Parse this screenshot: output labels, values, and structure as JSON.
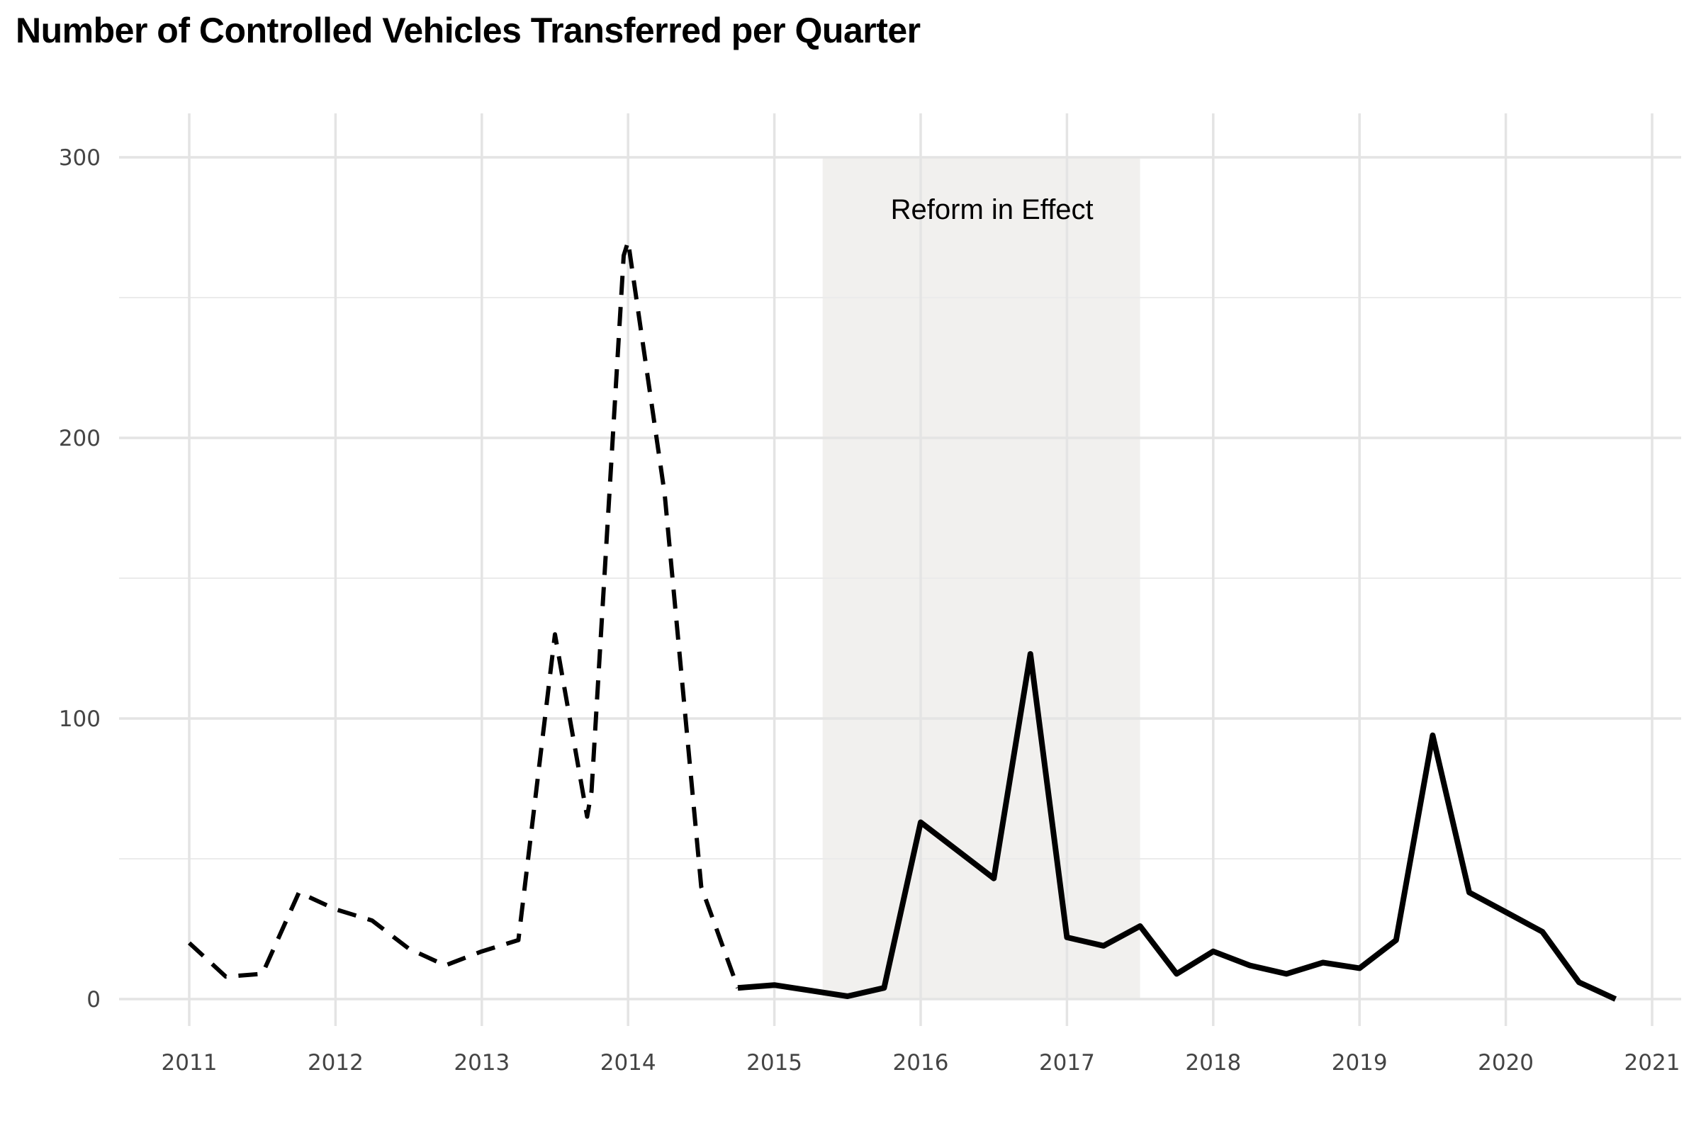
{
  "chart_data": {
    "type": "line",
    "title": "Number of Controlled Vehicles Transferred per Quarter",
    "xlabel": "",
    "ylabel": "",
    "xlim": [
      2010.8,
      2021.1
    ],
    "ylim": [
      -10,
      300
    ],
    "x_ticks": [
      2011,
      2012,
      2013,
      2014,
      2015,
      2016,
      2017,
      2018,
      2019,
      2020,
      2021
    ],
    "x_tick_labels": [
      "2011",
      "2012",
      "2013",
      "2014",
      "2015",
      "2016",
      "2017",
      "2018",
      "2019",
      "2020",
      "2021"
    ],
    "y_ticks": [
      0,
      100,
      200,
      300
    ],
    "y_tick_labels": [
      "0",
      "100",
      "200",
      "300"
    ],
    "y_minor_gridlines": [
      50,
      150,
      250
    ],
    "grid": true,
    "shaded_region": {
      "x": [
        2015.33,
        2017.5
      ],
      "color": "#f1f0ee",
      "label": "Reform in Effect"
    },
    "series": [
      {
        "style": "dashed",
        "color": "#000000",
        "x": [
          2011.0,
          2011.25,
          2011.5,
          2011.75,
          2012.0,
          2012.25,
          2012.5,
          2012.75,
          2013.0,
          2013.25,
          2013.5,
          2013.72,
          2013.75,
          2013.97,
          2014.0,
          2014.25,
          2014.5,
          2014.75
        ],
        "y": [
          20,
          8,
          9,
          38,
          32,
          28,
          18,
          12,
          17,
          21,
          130,
          65,
          74,
          265,
          270,
          180,
          40,
          4
        ]
      },
      {
        "style": "solid",
        "color": "#000000",
        "x": [
          2014.75,
          2015.0,
          2015.25,
          2015.5,
          2015.75,
          2016.0,
          2016.25,
          2016.5,
          2016.75,
          2017.0,
          2017.25,
          2017.5,
          2017.75,
          2018.0,
          2018.25,
          2018.5,
          2018.75,
          2019.0,
          2019.25,
          2019.5,
          2019.75,
          2020.0,
          2020.25,
          2020.5,
          2020.75
        ],
        "y": [
          4,
          5,
          3,
          1,
          4,
          63,
          53,
          43,
          123,
          22,
          19,
          26,
          9,
          17,
          12,
          9,
          13,
          11,
          21,
          94,
          38,
          31,
          24,
          6,
          0
        ]
      }
    ]
  }
}
